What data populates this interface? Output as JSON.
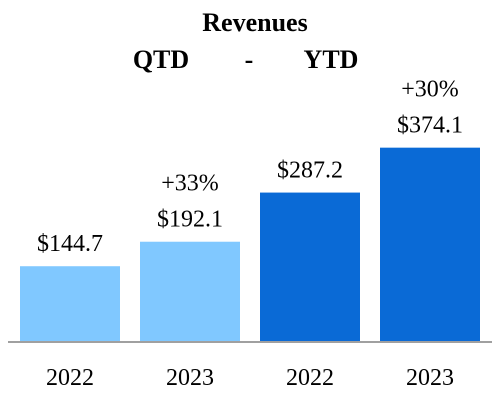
{
  "chart_data": {
    "type": "bar",
    "title": "Revenues",
    "subtitle": {
      "left": "QTD",
      "separator": "-",
      "right": "YTD"
    },
    "categories": [
      "2022",
      "2023",
      "2022",
      "2023"
    ],
    "groups": [
      "QTD",
      "QTD",
      "YTD",
      "YTD"
    ],
    "values": [
      144.7,
      192.1,
      287.2,
      374.1
    ],
    "value_labels": [
      "$144.7",
      "$192.1",
      "$287.2",
      "$374.1"
    ],
    "changes": [
      {
        "label": "+33%",
        "bar_index": 1
      },
      {
        "label": "+30%",
        "bar_index": 3
      }
    ],
    "colors": [
      "#80c8ff",
      "#80c8ff",
      "#0a6ad6",
      "#0a6ad6"
    ],
    "axis_color": "#a0a0a0",
    "xlabel": "",
    "ylabel": "",
    "ylim": [
      0,
      400
    ],
    "grid": false,
    "legend": "none"
  }
}
